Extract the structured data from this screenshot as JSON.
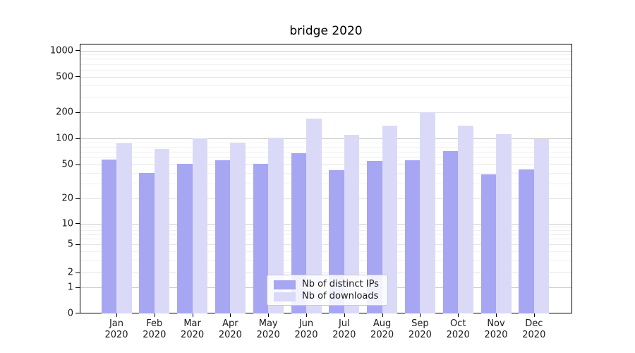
{
  "title": "bridge 2020",
  "chart_data": {
    "type": "bar",
    "title": "bridge 2020",
    "categories": [
      "Jan 2020",
      "Feb 2020",
      "Mar 2020",
      "Apr 2020",
      "May 2020",
      "Jun 2020",
      "Jul 2020",
      "Aug 2020",
      "Sep 2020",
      "Oct 2020",
      "Nov 2020",
      "Dec 2020"
    ],
    "series": [
      {
        "name": "Nb of distinct IPs",
        "color": "#a6a6f2",
        "values": [
          57,
          40,
          51,
          56,
          51,
          68,
          43,
          55,
          56,
          71,
          38,
          44
        ]
      },
      {
        "name": "Nb of downloads",
        "color": "#dadaf8",
        "values": [
          87,
          76,
          100,
          89,
          102,
          170,
          109,
          140,
          199,
          141,
          112,
          99
        ]
      }
    ],
    "xlabel": "",
    "ylabel": "",
    "yscale": "symlog",
    "ylim": [
      0,
      1200
    ],
    "yticks": [
      0,
      1,
      2,
      5,
      10,
      20,
      50,
      100,
      200,
      500,
      1000
    ],
    "major_gridline_values": [
      1,
      10,
      100,
      1000
    ],
    "minor_gridline_values": [
      3,
      4,
      6,
      7,
      8,
      9,
      30,
      40,
      60,
      70,
      80,
      90,
      300,
      400,
      600,
      700,
      800,
      900
    ],
    "grid": true,
    "legend_position": "lower center"
  },
  "legend": {
    "items": [
      {
        "label": "Nb of distinct IPs",
        "swatch_color": "#a6a6f2"
      },
      {
        "label": "Nb of downloads",
        "swatch_color": "#dadaf8"
      }
    ]
  },
  "colors": {
    "grid_major": "#c9c9c9",
    "grid_mid": "#e4e4e8",
    "grid_minor": "#f0f0f3",
    "spine": "#000000",
    "text": "#1a1a1a"
  }
}
